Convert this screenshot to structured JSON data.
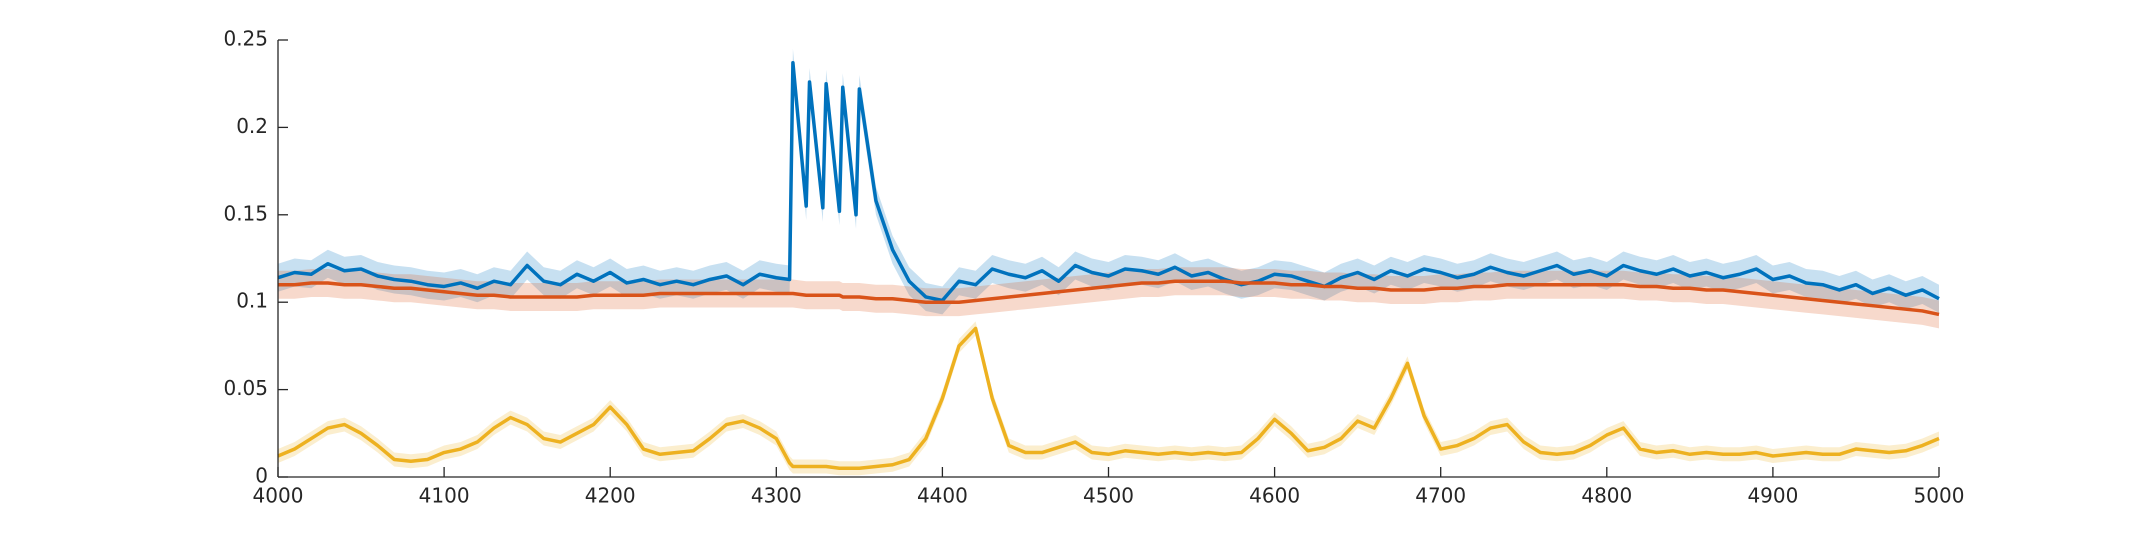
{
  "chart_data": {
    "type": "line",
    "x": [
      4000,
      4010,
      4020,
      4030,
      4040,
      4050,
      4060,
      4070,
      4080,
      4090,
      4100,
      4110,
      4120,
      4130,
      4140,
      4150,
      4160,
      4170,
      4180,
      4190,
      4200,
      4210,
      4220,
      4230,
      4240,
      4250,
      4260,
      4270,
      4280,
      4290,
      4300,
      4308,
      4310,
      4318,
      4320,
      4328,
      4330,
      4338,
      4340,
      4348,
      4350,
      4360,
      4370,
      4380,
      4390,
      4400,
      4410,
      4420,
      4430,
      4440,
      4450,
      4460,
      4470,
      4480,
      4490,
      4500,
      4510,
      4520,
      4530,
      4540,
      4550,
      4560,
      4570,
      4580,
      4590,
      4600,
      4610,
      4620,
      4630,
      4640,
      4650,
      4660,
      4670,
      4680,
      4690,
      4700,
      4710,
      4720,
      4730,
      4740,
      4750,
      4760,
      4770,
      4780,
      4790,
      4800,
      4810,
      4820,
      4830,
      4840,
      4850,
      4860,
      4870,
      4880,
      4890,
      4900,
      4910,
      4920,
      4930,
      4940,
      4950,
      4960,
      4970,
      4980,
      4990,
      5000
    ],
    "series": [
      {
        "color": "#0072bd",
        "error": 0.008,
        "values": [
          0.114,
          0.117,
          0.116,
          0.122,
          0.118,
          0.119,
          0.115,
          0.113,
          0.112,
          0.11,
          0.109,
          0.111,
          0.108,
          0.112,
          0.11,
          0.121,
          0.112,
          0.11,
          0.116,
          0.112,
          0.117,
          0.111,
          0.113,
          0.11,
          0.112,
          0.11,
          0.113,
          0.115,
          0.11,
          0.116,
          0.114,
          0.113,
          0.237,
          0.155,
          0.226,
          0.154,
          0.225,
          0.152,
          0.223,
          0.15,
          0.222,
          0.158,
          0.13,
          0.112,
          0.103,
          0.101,
          0.112,
          0.11,
          0.119,
          0.116,
          0.114,
          0.118,
          0.112,
          0.121,
          0.117,
          0.115,
          0.119,
          0.118,
          0.116,
          0.12,
          0.115,
          0.117,
          0.113,
          0.11,
          0.112,
          0.116,
          0.115,
          0.112,
          0.109,
          0.114,
          0.117,
          0.113,
          0.118,
          0.115,
          0.119,
          0.117,
          0.114,
          0.116,
          0.12,
          0.117,
          0.115,
          0.118,
          0.121,
          0.116,
          0.118,
          0.115,
          0.121,
          0.118,
          0.116,
          0.119,
          0.115,
          0.117,
          0.114,
          0.116,
          0.119,
          0.113,
          0.115,
          0.111,
          0.11,
          0.107,
          0.11,
          0.105,
          0.108,
          0.104,
          0.107,
          0.102
        ]
      },
      {
        "color": "#d95319",
        "error": 0.008,
        "values": [
          0.11,
          0.11,
          0.111,
          0.111,
          0.11,
          0.11,
          0.109,
          0.108,
          0.108,
          0.107,
          0.106,
          0.105,
          0.104,
          0.104,
          0.103,
          0.103,
          0.103,
          0.103,
          0.103,
          0.104,
          0.104,
          0.104,
          0.104,
          0.105,
          0.105,
          0.105,
          0.105,
          0.105,
          0.105,
          0.105,
          0.105,
          0.105,
          0.105,
          0.104,
          0.104,
          0.104,
          0.104,
          0.104,
          0.103,
          0.103,
          0.103,
          0.102,
          0.102,
          0.101,
          0.1,
          0.1,
          0.1,
          0.101,
          0.102,
          0.103,
          0.104,
          0.105,
          0.106,
          0.107,
          0.108,
          0.109,
          0.11,
          0.111,
          0.111,
          0.112,
          0.112,
          0.112,
          0.112,
          0.111,
          0.111,
          0.111,
          0.11,
          0.11,
          0.109,
          0.109,
          0.108,
          0.108,
          0.107,
          0.107,
          0.107,
          0.108,
          0.108,
          0.109,
          0.109,
          0.11,
          0.11,
          0.11,
          0.11,
          0.11,
          0.11,
          0.11,
          0.11,
          0.109,
          0.109,
          0.108,
          0.108,
          0.107,
          0.107,
          0.106,
          0.105,
          0.104,
          0.103,
          0.102,
          0.101,
          0.1,
          0.099,
          0.098,
          0.097,
          0.096,
          0.095,
          0.093
        ]
      },
      {
        "color": "#edb120",
        "error": 0.004,
        "values": [
          0.012,
          0.016,
          0.022,
          0.028,
          0.03,
          0.025,
          0.018,
          0.01,
          0.009,
          0.01,
          0.014,
          0.016,
          0.02,
          0.028,
          0.034,
          0.03,
          0.022,
          0.02,
          0.025,
          0.03,
          0.04,
          0.03,
          0.016,
          0.013,
          0.014,
          0.015,
          0.022,
          0.03,
          0.032,
          0.028,
          0.022,
          0.008,
          0.006,
          0.006,
          0.006,
          0.006,
          0.006,
          0.005,
          0.005,
          0.005,
          0.005,
          0.006,
          0.007,
          0.01,
          0.022,
          0.045,
          0.075,
          0.085,
          0.045,
          0.018,
          0.014,
          0.014,
          0.017,
          0.02,
          0.014,
          0.013,
          0.015,
          0.014,
          0.013,
          0.014,
          0.013,
          0.014,
          0.013,
          0.014,
          0.022,
          0.033,
          0.025,
          0.015,
          0.017,
          0.022,
          0.032,
          0.028,
          0.045,
          0.065,
          0.035,
          0.016,
          0.018,
          0.022,
          0.028,
          0.03,
          0.02,
          0.014,
          0.013,
          0.014,
          0.018,
          0.024,
          0.028,
          0.016,
          0.014,
          0.015,
          0.013,
          0.014,
          0.013,
          0.013,
          0.014,
          0.012,
          0.013,
          0.014,
          0.013,
          0.013,
          0.016,
          0.015,
          0.014,
          0.015,
          0.018,
          0.022
        ]
      }
    ],
    "xlim": [
      4000,
      5000
    ],
    "xticks": [
      4000,
      4100,
      4200,
      4300,
      4400,
      4500,
      4600,
      4700,
      4800,
      4900,
      5000
    ],
    "ylim": [
      0,
      0.25
    ],
    "yticks": [
      0,
      0.05,
      0.1,
      0.15,
      0.2,
      0.25
    ]
  }
}
